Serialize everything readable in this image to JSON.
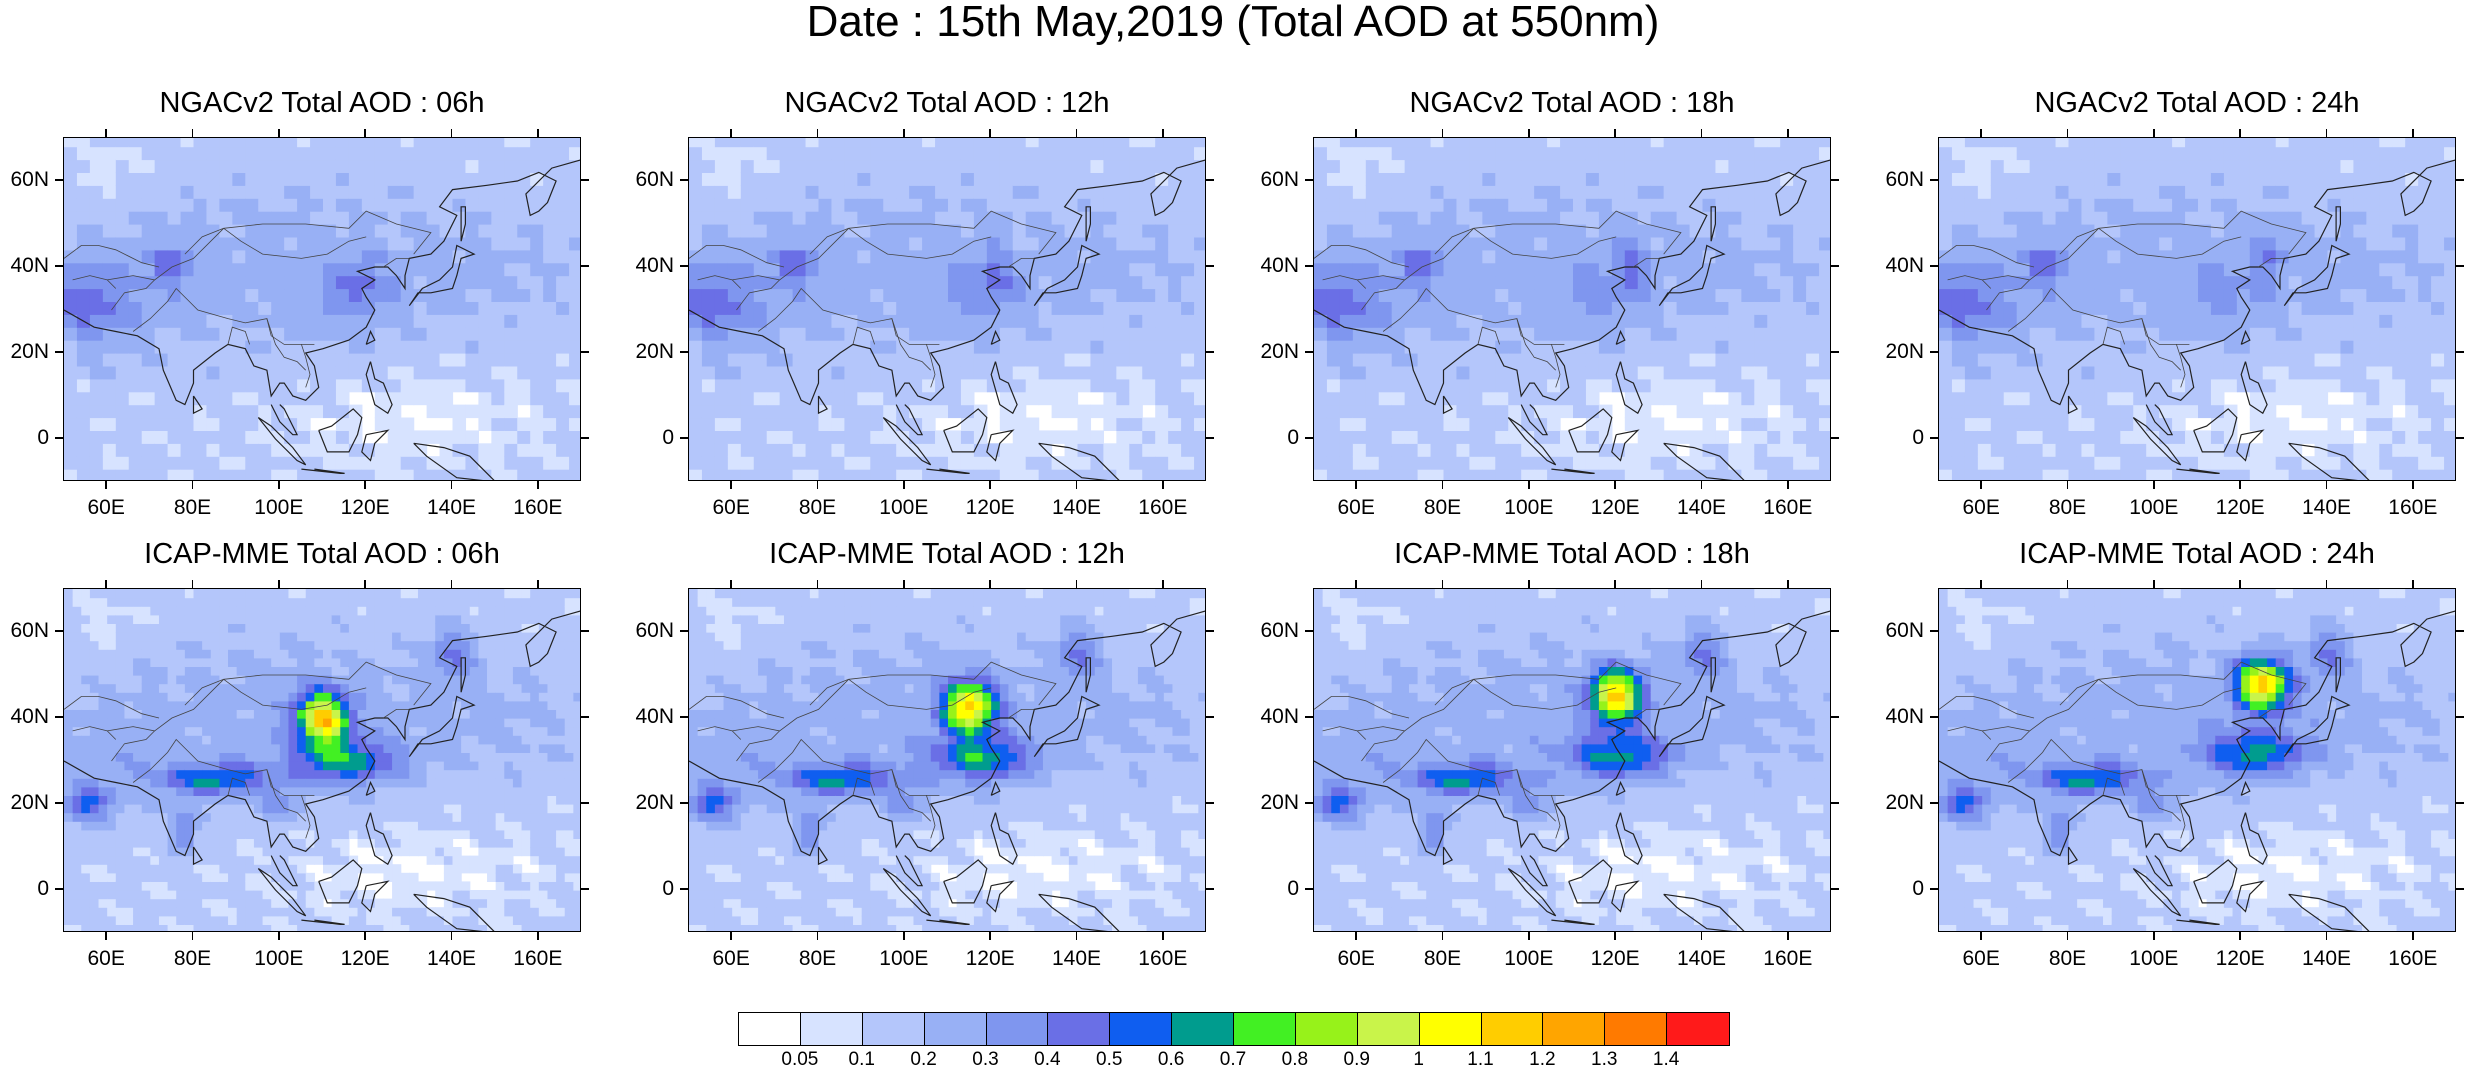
{
  "title": "Date : 15th May,2019 (Total AOD at 550nm)",
  "panels": [
    {
      "title": "NGACv2 Total AOD : 06h",
      "model": "NGACv2",
      "hour": 6
    },
    {
      "title": "NGACv2 Total AOD : 12h",
      "model": "NGACv2",
      "hour": 12
    },
    {
      "title": "NGACv2 Total AOD : 18h",
      "model": "NGACv2",
      "hour": 18
    },
    {
      "title": "NGACv2 Total AOD : 24h",
      "model": "NGACv2",
      "hour": 24
    },
    {
      "title": "ICAP-MME Total AOD : 06h",
      "model": "ICAP-MME",
      "hour": 6
    },
    {
      "title": "ICAP-MME Total AOD : 12h",
      "model": "ICAP-MME",
      "hour": 12
    },
    {
      "title": "ICAP-MME Total AOD : 18h",
      "model": "ICAP-MME",
      "hour": 18
    },
    {
      "title": "ICAP-MME Total AOD : 24h",
      "model": "ICAP-MME",
      "hour": 24
    }
  ],
  "axes": {
    "lat_labels": [
      "60N",
      "40N",
      "20N",
      "0"
    ],
    "lat_values": [
      60,
      40,
      20,
      0
    ],
    "lon_labels": [
      "60E",
      "80E",
      "100E",
      "120E",
      "140E",
      "160E"
    ],
    "lon_values": [
      60,
      80,
      100,
      120,
      140,
      160
    ],
    "lon_range": [
      50,
      170
    ],
    "lat_range": [
      -10,
      70
    ]
  },
  "colorbar": {
    "labels": [
      "0.05",
      "0.1",
      "0.2",
      "0.3",
      "0.4",
      "0.5",
      "0.6",
      "0.7",
      "0.8",
      "0.9",
      "1",
      "1.1",
      "1.2",
      "1.3",
      "1.4"
    ],
    "colors": [
      "#ffffff",
      "#d7e3ff",
      "#b4c6fb",
      "#98b0f5",
      "#7f96ef",
      "#6a6fe6",
      "#0f5ef0",
      "#009c8e",
      "#42f023",
      "#97f21a",
      "#c9f44a",
      "#ffff00",
      "#ffcd00",
      "#ffa500",
      "#ff7a00",
      "#ff1a1a"
    ]
  },
  "chart_data": {
    "type": "heatmap",
    "variable": "Total AOD at 550nm",
    "date": "15th May,2019",
    "models": [
      "NGACv2",
      "ICAP-MME"
    ],
    "forecast_hours": [
      "06h",
      "12h",
      "18h",
      "24h"
    ],
    "levels": [
      0.05,
      0.1,
      0.2,
      0.3,
      0.4,
      0.5,
      0.6,
      0.7,
      0.8,
      0.9,
      1,
      1.1,
      1.2,
      1.3,
      1.4
    ]
  }
}
